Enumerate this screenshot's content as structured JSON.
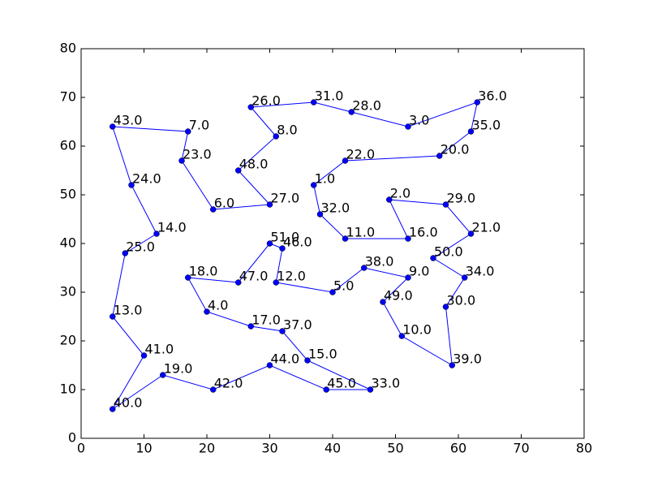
{
  "chart_data": {
    "type": "line",
    "color": "#0000ff",
    "closed": true,
    "x": [
      5,
      17,
      16,
      21,
      30,
      25,
      31,
      27,
      37,
      43,
      52,
      63,
      62,
      57,
      42,
      37,
      38,
      42,
      52,
      49,
      58,
      62,
      56,
      61,
      58,
      59,
      51,
      48,
      52,
      45,
      40,
      31,
      32,
      30,
      25,
      17,
      20,
      27,
      32,
      36,
      46,
      39,
      30,
      21,
      13,
      5,
      10,
      5,
      7,
      12,
      8
    ],
    "values": [
      64,
      63,
      57,
      47,
      48,
      55,
      62,
      68,
      69,
      67,
      64,
      69,
      63,
      58,
      57,
      52,
      46,
      41,
      41,
      49,
      48,
      42,
      37,
      33,
      27,
      15,
      21,
      28,
      33,
      35,
      30,
      32,
      39,
      40,
      32,
      33,
      26,
      23,
      22,
      16,
      10,
      10,
      15,
      10,
      13,
      6,
      17,
      25,
      38,
      42,
      52
    ],
    "point_labels": [
      "43.0",
      "7.0",
      "23.0",
      "6.0",
      "27.0",
      "48.0",
      "8.0",
      "26.0",
      "31.0",
      "28.0",
      "3.0",
      "36.0",
      "35.0",
      "20.0",
      "22.0",
      "1.0",
      "32.0",
      "11.0",
      "16.0",
      "2.0",
      "29.0",
      "21.0",
      "50.0",
      "34.0",
      "30.0",
      "39.0",
      "10.0",
      "49.0",
      "9.0",
      "38.0",
      "5.0",
      "12.0",
      "46.0",
      "51.0",
      "47.0",
      "18.0",
      "4.0",
      "17.0",
      "37.0",
      "15.0",
      "33.0",
      "45.0",
      "44.0",
      "42.0",
      "19.0",
      "40.0",
      "41.0",
      "13.0",
      "25.0",
      "14.0",
      "24.0"
    ],
    "xlim": [
      0,
      80
    ],
    "ylim": [
      0,
      80
    ],
    "xticks": [
      0,
      10,
      20,
      30,
      40,
      50,
      60,
      70,
      80
    ],
    "yticks": [
      0,
      10,
      20,
      30,
      40,
      50,
      60,
      70,
      80
    ]
  }
}
